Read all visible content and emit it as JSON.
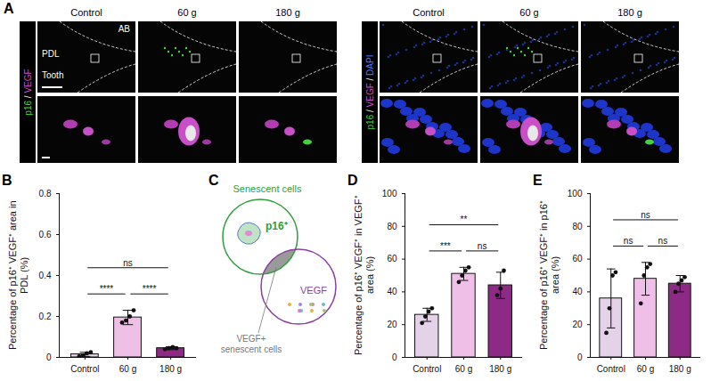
{
  "image_panel": {
    "letter": "A",
    "columns": [
      "Control",
      "60 g",
      "180 g"
    ],
    "groups": [
      {
        "channels": [
          {
            "text": "p16",
            "color": "#3fd43f"
          },
          {
            "text": " / ",
            "color": "#ffffff"
          },
          {
            "text": "VEGF",
            "color": "#d24fd2"
          }
        ]
      },
      {
        "channels": [
          {
            "text": "p16",
            "color": "#3fd43f"
          },
          {
            "text": " / ",
            "color": "#ffffff"
          },
          {
            "text": "VEGF",
            "color": "#d24fd2"
          },
          {
            "text": " / ",
            "color": "#ffffff"
          },
          {
            "text": "DAPI",
            "color": "#4a78ff"
          }
        ]
      }
    ],
    "region_labels": {
      "bone": "AB",
      "ligament": "PDL",
      "tooth": "Tooth"
    }
  },
  "diagram": {
    "letter": "C",
    "circles": [
      {
        "label": "Senescent cells",
        "inner": "p16⁺",
        "color": "#2f9e3c"
      },
      {
        "label": "VEGF",
        "color": "#8a3fa0"
      }
    ],
    "overlap_label": "VEGF+ senescent cells",
    "overlap_color": "#9a9a9a"
  },
  "chart_data": [
    {
      "type": "bar",
      "panel": "B",
      "ylabel": "Percentage of p16⁺ VEGF⁺ area in PDL (%)",
      "categories": [
        "Control",
        "60 g",
        "180 g"
      ],
      "values": [
        0.015,
        0.195,
        0.045
      ],
      "errors": [
        0.01,
        0.035,
        0.007
      ],
      "points": [
        [
          0.005,
          0.01,
          0.02,
          0.025
        ],
        [
          0.17,
          0.18,
          0.2,
          0.23
        ],
        [
          0.04,
          0.045,
          0.05,
          0.045
        ]
      ],
      "colors": [
        "#e4d2e8",
        "#f0bfe8",
        "#8c2a86"
      ],
      "marker": "circle",
      "ylim": [
        0,
        0.8
      ],
      "yticks": [
        0,
        0.2,
        0.4,
        0.6,
        0.8
      ],
      "annotations": [
        {
          "from": "Control",
          "to": "60 g",
          "label": "****"
        },
        {
          "from": "60 g",
          "to": "180 g",
          "label": "****"
        },
        {
          "from": "Control",
          "to": "180 g",
          "label": "ns"
        }
      ]
    },
    {
      "type": "bar",
      "panel": "D",
      "ylabel": "Percentage of p16⁺ VEGF⁺ in VEGF⁺ area (%)",
      "categories": [
        "Control",
        "60 g",
        "180 g"
      ],
      "values": [
        26,
        51,
        44
      ],
      "errors": [
        4,
        4,
        8
      ],
      "points": [
        [
          21,
          25,
          28,
          30
        ],
        [
          46,
          50,
          53,
          55
        ],
        [
          38,
          42,
          53
        ]
      ],
      "colors": [
        "#e4d2e8",
        "#f0bfe8",
        "#8c2a86"
      ],
      "marker": "circle",
      "ylim": [
        0,
        100
      ],
      "yticks": [
        0,
        20,
        40,
        60,
        80,
        100
      ],
      "annotations": [
        {
          "from": "Control",
          "to": "60 g",
          "label": "***"
        },
        {
          "from": "60 g",
          "to": "180 g",
          "label": "ns"
        },
        {
          "from": "Control",
          "to": "180 g",
          "label": "**"
        }
      ]
    },
    {
      "type": "bar",
      "panel": "E",
      "ylabel": "Percentage of p16⁺ VEGF⁺ in p16⁺ area (%)",
      "categories": [
        "Control",
        "60 g",
        "180 g"
      ],
      "values": [
        36,
        48,
        45
      ],
      "errors": [
        18,
        10,
        5
      ],
      "points": [
        [
          15,
          30,
          50,
          52
        ],
        [
          33,
          50,
          55,
          57
        ],
        [
          40,
          45,
          47,
          49
        ]
      ],
      "colors": [
        "#e4d2e8",
        "#f0bfe8",
        "#8c2a86"
      ],
      "marker": "circle",
      "ylim": [
        0,
        100
      ],
      "yticks": [
        0,
        20,
        40,
        60,
        80,
        100
      ],
      "annotations": [
        {
          "from": "Control",
          "to": "60 g",
          "label": "ns"
        },
        {
          "from": "60 g",
          "to": "180 g",
          "label": "ns"
        },
        {
          "from": "Control",
          "to": "180 g",
          "label": "ns"
        }
      ]
    }
  ]
}
